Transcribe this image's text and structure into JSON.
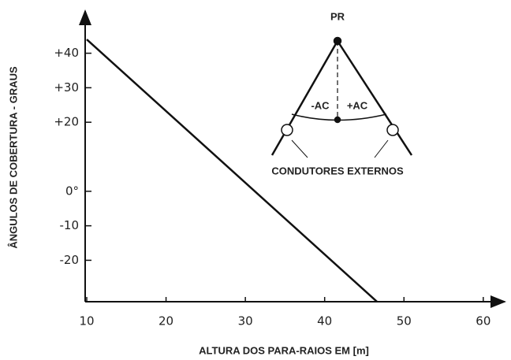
{
  "chart_data": {
    "type": "line",
    "x_label": "ALTURA DOS PARA-RAIOS EM [m]",
    "y_label": "ÂNGULOS DE COBERTURA - GRAUS",
    "xlim": [
      10,
      63
    ],
    "ylim": [
      -32,
      52
    ],
    "xticks": [
      10,
      20,
      30,
      40,
      50,
      60
    ],
    "yticks": [
      {
        "value": 40,
        "label": "+40"
      },
      {
        "value": 30,
        "label": "+30"
      },
      {
        "value": 20,
        "label": "+20"
      },
      {
        "value": 0,
        "label": "0°"
      },
      {
        "value": -10,
        "label": "-10"
      },
      {
        "value": -20,
        "label": "-20"
      }
    ],
    "series": [
      {
        "color": "#111111",
        "x": [
          10,
          46.6
        ],
        "values": [
          44,
          -32
        ]
      }
    ],
    "annotations": {
      "top": "PR",
      "left_angle": "-AC",
      "right_angle": "+AC",
      "conductors": "CONDUTORES EXTERNOS"
    }
  }
}
